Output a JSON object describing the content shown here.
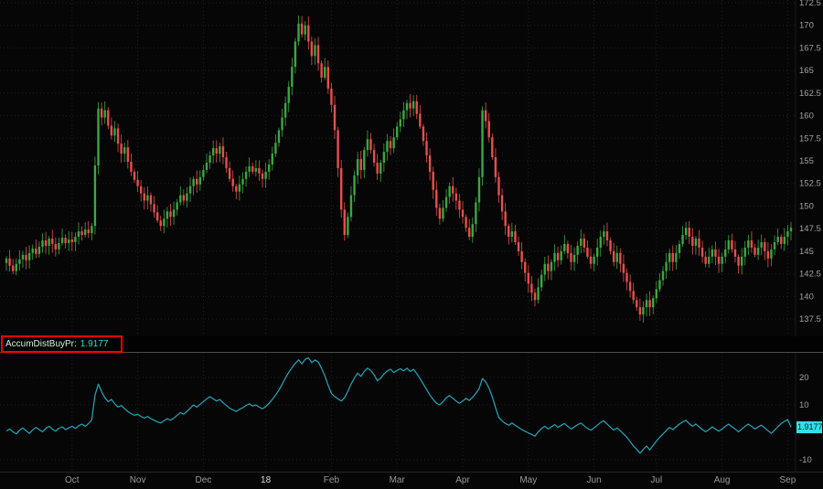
{
  "indicator_panel": {
    "label": "AccumDistBuyPr:",
    "value": "1.9177",
    "badge": "1.9177"
  },
  "colors": {
    "background": "#060606",
    "up": "#3aa83e",
    "down": "#ea4d4c",
    "indicator_line": "#1fa8bd",
    "badge_bg": "#2fe0e6",
    "badge_text": "#00262a",
    "grid": "#202020",
    "axis_text": "#a0a0a0",
    "annotation_box": "#ff0000",
    "study_value_text": "#35d8e8"
  },
  "chart_data": [
    {
      "type": "candlestick",
      "title": "",
      "ylim": [
        137.5,
        172.5
      ],
      "y_ticks": [
        172.5,
        170,
        167.5,
        165,
        162.5,
        160,
        157.5,
        155,
        152.5,
        150,
        147.5,
        145,
        142.5,
        140,
        137.5
      ],
      "x_ticks": [
        {
          "label": "Oct",
          "i": 20
        },
        {
          "label": "Nov",
          "i": 40
        },
        {
          "label": "Dec",
          "i": 60
        },
        {
          "label": "18",
          "i": 79,
          "strong": true
        },
        {
          "label": "Feb",
          "i": 99
        },
        {
          "label": "Mar",
          "i": 119
        },
        {
          "label": "Apr",
          "i": 139
        },
        {
          "label": "May",
          "i": 159
        },
        {
          "label": "Jun",
          "i": 179
        },
        {
          "label": "Jul",
          "i": 198
        },
        {
          "label": "Aug",
          "i": 218
        },
        {
          "label": "Sep",
          "i": 238
        }
      ],
      "close": [
        144.2,
        143.4,
        142.8,
        143.6,
        144.1,
        144.6,
        144.0,
        144.8,
        145.3,
        144.7,
        145.5,
        146.2,
        145.6,
        146.4,
        145.8,
        145.2,
        145.9,
        146.5,
        145.9,
        146.3,
        146.0,
        146.6,
        147.2,
        146.8,
        147.4,
        147.0,
        147.8,
        154.5,
        160.8,
        159.8,
        160.6,
        158.9,
        157.8,
        158.6,
        156.9,
        155.8,
        156.5,
        154.9,
        153.8,
        152.9,
        152.2,
        151.4,
        150.6,
        151.2,
        150.2,
        149.3,
        148.4,
        147.8,
        148.6,
        149.4,
        148.8,
        149.6,
        150.4,
        151.2,
        150.6,
        151.4,
        152.2,
        153.0,
        152.4,
        153.2,
        154.0,
        154.8,
        155.6,
        156.4,
        155.8,
        156.6,
        155.4,
        154.2,
        153.0,
        152.2,
        151.6,
        152.4,
        153.0,
        153.8,
        154.4,
        153.8,
        154.2,
        153.6,
        153.0,
        153.8,
        154.6,
        155.8,
        157.0,
        158.4,
        159.8,
        161.4,
        163.2,
        165.4,
        168.2,
        170.2,
        169.0,
        170.0,
        168.2,
        166.6,
        167.8,
        165.8,
        164.2,
        165.4,
        163.0,
        161.2,
        158.4,
        154.2,
        149.6,
        146.8,
        148.8,
        151.2,
        153.4,
        155.2,
        154.0,
        156.2,
        157.4,
        156.2,
        154.8,
        153.6,
        154.8,
        156.0,
        157.2,
        156.4,
        157.6,
        158.8,
        159.6,
        160.6,
        161.4,
        160.8,
        161.6,
        160.2,
        158.8,
        157.2,
        155.6,
        153.8,
        151.8,
        149.8,
        148.6,
        149.8,
        151.0,
        152.2,
        151.4,
        150.6,
        149.6,
        148.8,
        147.6,
        146.6,
        148.0,
        150.4,
        153.2,
        160.6,
        159.4,
        157.6,
        155.4,
        153.2,
        151.2,
        149.4,
        147.8,
        146.6,
        147.2,
        146.0,
        145.0,
        143.8,
        142.6,
        141.4,
        140.4,
        139.6,
        141.0,
        142.4,
        143.6,
        142.8,
        143.8,
        144.8,
        144.0,
        145.0,
        145.8,
        144.8,
        143.8,
        144.6,
        145.6,
        146.4,
        145.4,
        144.4,
        143.6,
        144.4,
        145.4,
        146.6,
        147.2,
        146.2,
        145.0,
        143.8,
        144.8,
        143.6,
        142.6,
        141.6,
        140.6,
        139.6,
        138.8,
        138.0,
        138.8,
        139.6,
        138.8,
        139.8,
        140.8,
        141.8,
        142.8,
        143.8,
        144.8,
        143.8,
        144.8,
        145.8,
        146.8,
        147.6,
        146.6,
        145.6,
        146.4,
        145.4,
        144.4,
        143.6,
        144.4,
        145.2,
        144.4,
        143.6,
        144.4,
        145.2,
        146.2,
        145.2,
        144.4,
        143.4,
        144.4,
        145.4,
        146.2,
        145.4,
        144.6,
        145.4,
        146.0,
        145.0,
        144.2,
        145.2,
        146.0,
        146.6,
        145.8,
        146.6,
        147.2,
        147.6
      ]
    },
    {
      "type": "line",
      "name": "AccumDistBuyPr",
      "current_value": 1.9177,
      "ylim": [
        -14,
        29
      ],
      "y_ticks": [
        20,
        10,
        -10
      ],
      "values": [
        0.5,
        1.2,
        0.2,
        -0.6,
        0.8,
        1.6,
        0.6,
        -0.4,
        0.9,
        1.8,
        1.0,
        0.2,
        1.4,
        2.2,
        1.2,
        0.4,
        1.5,
        2.0,
        1.0,
        1.6,
        2.2,
        1.4,
        2.4,
        3.0,
        2.2,
        3.2,
        4.5,
        13.5,
        17.6,
        14.8,
        12.6,
        11.2,
        12.0,
        10.4,
        9.2,
        9.8,
        8.6,
        7.6,
        6.8,
        6.2,
        6.6,
        5.8,
        5.2,
        5.8,
        5.0,
        4.4,
        3.8,
        3.4,
        4.2,
        5.0,
        4.4,
        5.2,
        6.2,
        7.2,
        6.6,
        7.6,
        8.8,
        10.0,
        9.2,
        10.2,
        11.2,
        12.2,
        13.0,
        12.2,
        11.4,
        12.0,
        10.8,
        9.8,
        8.8,
        8.2,
        7.6,
        8.4,
        9.0,
        9.8,
        10.4,
        9.6,
        10.0,
        9.2,
        8.6,
        9.4,
        10.6,
        12.0,
        13.6,
        15.4,
        17.6,
        19.8,
        21.8,
        23.6,
        25.2,
        26.4,
        25.0,
        26.6,
        27.2,
        25.4,
        26.4,
        25.6,
        23.4,
        20.6,
        17.2,
        14.2,
        13.0,
        12.2,
        11.4,
        12.6,
        15.0,
        17.6,
        19.8,
        21.6,
        20.4,
        22.2,
        23.4,
        22.6,
        21.0,
        18.8,
        19.8,
        21.2,
        22.4,
        23.0,
        21.8,
        22.6,
        23.2,
        22.4,
        23.4,
        22.2,
        23.0,
        21.4,
        19.6,
        17.6,
        15.6,
        13.6,
        12.0,
        10.6,
        10.0,
        11.2,
        12.6,
        13.4,
        12.4,
        11.4,
        10.6,
        11.4,
        12.4,
        11.6,
        12.8,
        14.2,
        16.0,
        19.6,
        18.4,
        16.2,
        13.0,
        9.0,
        5.4,
        4.2,
        3.2,
        2.6,
        3.4,
        2.6,
        1.8,
        1.0,
        0.4,
        -0.2,
        -0.8,
        -1.4,
        0.2,
        1.4,
        2.2,
        1.2,
        2.0,
        2.8,
        1.8,
        2.6,
        3.2,
        2.2,
        1.2,
        2.0,
        2.8,
        3.4,
        2.4,
        1.4,
        0.8,
        1.6,
        2.6,
        3.6,
        4.2,
        3.0,
        1.8,
        0.8,
        1.6,
        0.6,
        -0.6,
        -1.8,
        -3.4,
        -5.0,
        -6.2,
        -7.6,
        -6.2,
        -5.0,
        -6.4,
        -4.8,
        -3.2,
        -1.8,
        -0.6,
        0.6,
        1.8,
        1.0,
        2.0,
        3.0,
        3.8,
        4.4,
        3.2,
        2.2,
        3.0,
        2.0,
        1.0,
        0.2,
        1.0,
        2.0,
        1.2,
        0.4,
        1.2,
        2.2,
        3.0,
        2.0,
        1.2,
        0.2,
        1.2,
        2.2,
        3.0,
        2.2,
        1.2,
        2.0,
        2.6,
        1.6,
        0.6,
        -0.4,
        0.8,
        2.0,
        3.2,
        4.0,
        4.6,
        1.92
      ]
    }
  ]
}
